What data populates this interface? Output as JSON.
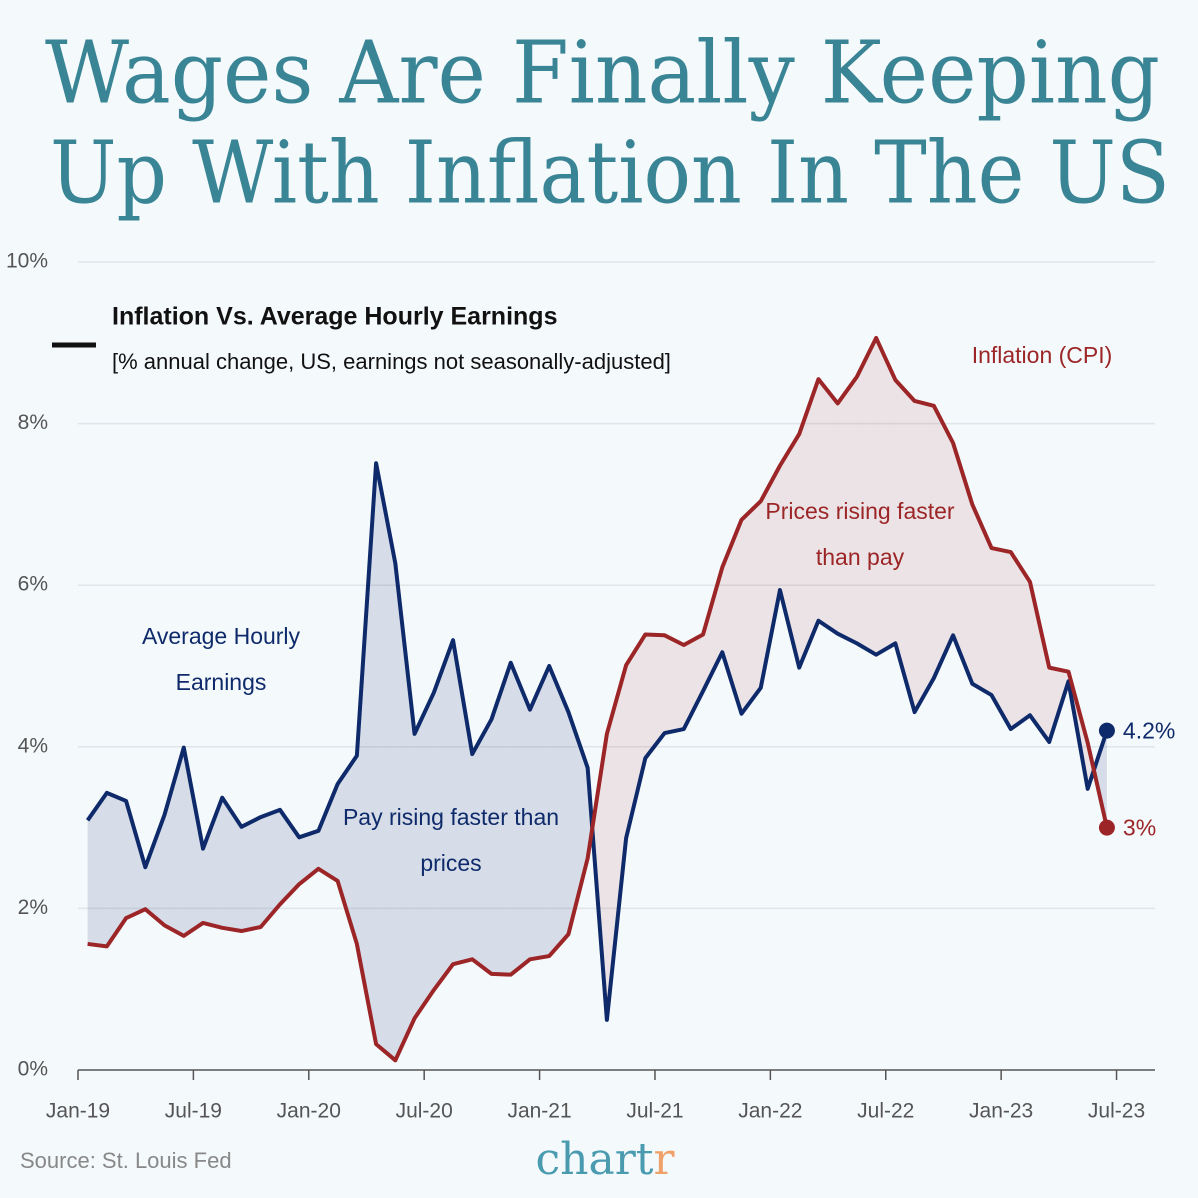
{
  "chart_data": {
    "type": "line",
    "title": [
      "Wages Are Finally Keeping",
      "Up With Inflation In The US"
    ],
    "subtitle": "Inflation Vs. Average Hourly Earnings",
    "subtitle_note": "[% annual change, US, earnings not seasonally-adjusted]",
    "source": "Source: St. Louis Fed",
    "logo": {
      "main": "chart",
      "accent": "r"
    },
    "x": [
      0.5,
      1.5,
      2.5,
      3.5,
      4.5,
      5.5,
      6.5,
      7.5,
      8.5,
      9.5,
      10.5,
      11.5,
      12.5,
      13.5,
      14.5,
      15.5,
      16.5,
      17.5,
      18.5,
      19.5,
      20.5,
      21.5,
      22.5,
      23.5,
      24.5,
      25.5,
      26.5,
      27.5,
      28.5,
      29.5,
      30.5,
      31.5,
      32.5,
      33.5,
      34.5,
      35.5,
      36.5,
      37.5,
      38.5,
      39.5,
      40.5,
      41.5,
      42.5,
      43.5,
      44.5,
      45.5,
      46.5,
      47.5,
      48.5,
      49.5,
      50.5,
      51.5,
      52.5,
      53.5
    ],
    "xlim": [
      0,
      56
    ],
    "xticks": [
      {
        "value": 0,
        "label": "Jan-19"
      },
      {
        "value": 6,
        "label": "Jul-19"
      },
      {
        "value": 12,
        "label": "Jan-20"
      },
      {
        "value": 18,
        "label": "Jul-20"
      },
      {
        "value": 24,
        "label": "Jan-21"
      },
      {
        "value": 30,
        "label": "Jul-21"
      },
      {
        "value": 36,
        "label": "Jan-22"
      },
      {
        "value": 42,
        "label": "Jul-22"
      },
      {
        "value": 48,
        "label": "Jan-23"
      },
      {
        "value": 54,
        "label": "Jul-23"
      }
    ],
    "ylim": [
      0,
      10
    ],
    "yticks": [
      {
        "value": 0,
        "label": "0%"
      },
      {
        "value": 2,
        "label": "2%"
      },
      {
        "value": 4,
        "label": "4%"
      },
      {
        "value": 6,
        "label": "6%"
      },
      {
        "value": 8,
        "label": "8%"
      },
      {
        "value": 10,
        "label": "10%"
      }
    ],
    "grid": true,
    "series": [
      {
        "name": "Average Hourly Earnings",
        "color": "#0e2a6a",
        "fill": "#0e2a6a",
        "values": [
          3.09,
          3.43,
          3.33,
          2.51,
          3.16,
          3.99,
          2.74,
          3.37,
          3.01,
          3.13,
          3.22,
          2.88,
          2.96,
          3.54,
          3.89,
          7.51,
          6.27,
          4.16,
          4.67,
          5.32,
          3.91,
          4.34,
          5.04,
          4.46,
          5.0,
          4.43,
          3.74,
          0.62,
          2.87,
          3.86,
          4.17,
          4.22,
          4.69,
          5.17,
          4.41,
          4.73,
          5.94,
          4.98,
          5.56,
          5.4,
          5.28,
          5.14,
          5.28,
          4.43,
          4.85,
          5.38,
          4.78,
          4.64,
          4.22,
          4.39,
          4.06,
          4.81,
          3.48,
          4.2
        ],
        "value_labels": [
          null,
          null,
          null,
          null,
          null,
          null,
          null,
          null,
          null,
          null,
          null,
          null,
          null,
          null,
          null,
          null,
          null,
          null,
          null,
          null,
          null,
          null,
          null,
          null,
          null,
          null,
          null,
          null,
          null,
          null,
          null,
          null,
          null,
          null,
          null,
          null,
          null,
          null,
          null,
          null,
          null,
          null,
          null,
          null,
          null,
          null,
          null,
          null,
          null,
          null,
          null,
          null,
          null,
          "4.2%"
        ]
      },
      {
        "name": "Inflation (CPI)",
        "color": "#9c2527",
        "fill": "#9c2527",
        "values": [
          1.56,
          1.53,
          1.88,
          1.99,
          1.79,
          1.66,
          1.82,
          1.76,
          1.72,
          1.77,
          2.05,
          2.3,
          2.49,
          2.34,
          1.56,
          0.32,
          0.12,
          0.64,
          0.99,
          1.31,
          1.37,
          1.19,
          1.18,
          1.37,
          1.41,
          1.68,
          2.62,
          4.16,
          5.01,
          5.39,
          5.38,
          5.26,
          5.39,
          6.22,
          6.81,
          7.04,
          7.48,
          7.87,
          8.55,
          8.25,
          8.58,
          9.06,
          8.54,
          8.28,
          8.22,
          7.76,
          7.0,
          6.46,
          6.41,
          6.04,
          4.98,
          4.93,
          4.05,
          3
        ],
        "value_labels": [
          null,
          null,
          null,
          null,
          null,
          null,
          null,
          null,
          null,
          null,
          null,
          null,
          null,
          null,
          null,
          null,
          null,
          null,
          null,
          null,
          null,
          null,
          null,
          null,
          null,
          null,
          null,
          null,
          null,
          null,
          null,
          null,
          null,
          null,
          null,
          null,
          null,
          null,
          null,
          null,
          null,
          null,
          null,
          null,
          null,
          null,
          null,
          null,
          null,
          null,
          null,
          null,
          null,
          "3%"
        ]
      }
    ],
    "annotations": [
      {
        "text": "Pay rising faster than prices",
        "color": "#0e2a6a"
      },
      {
        "text": "Prices rising faster than pay",
        "color": "#9c2527"
      }
    ]
  }
}
